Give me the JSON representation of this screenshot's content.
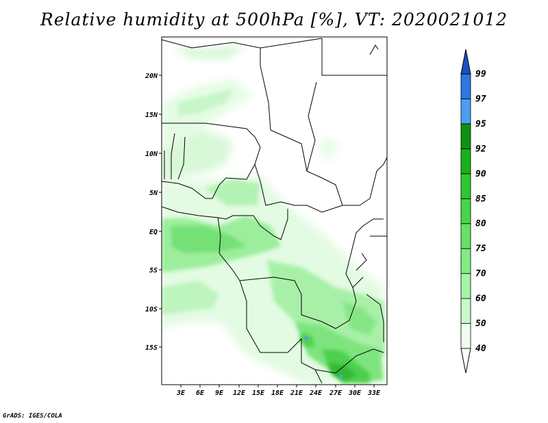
{
  "title": "Relative humidity at 500hPa [%], VT: 2020021012",
  "footer": "GrADS: IGES/COLA",
  "lat_ticks": [
    "20N",
    "15N",
    "10N",
    "5N",
    "EQ",
    "5S",
    "10S",
    "15S"
  ],
  "lon_ticks": [
    "3E",
    "6E",
    "9E",
    "12E",
    "15E",
    "18E",
    "21E",
    "24E",
    "27E",
    "30E",
    "33E"
  ],
  "colorbar": {
    "labels": [
      "40",
      "50",
      "60",
      "70",
      "75",
      "80",
      "85",
      "90",
      "92",
      "95",
      "97",
      "99"
    ],
    "colors": [
      "#f0fef0",
      "#c8fac8",
      "#a4f4a4",
      "#82ec82",
      "#64e264",
      "#46d646",
      "#2ec82e",
      "#18b218",
      "#109010",
      "#4aa0ee",
      "#2a78e0",
      "#1a50c8"
    ]
  }
}
